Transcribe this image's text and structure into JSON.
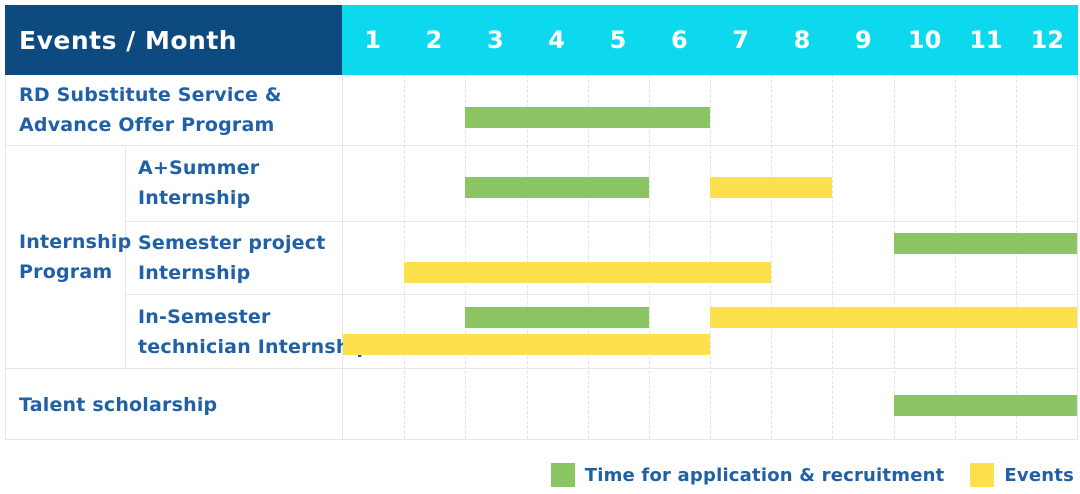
{
  "header": {
    "title": "Events / Month",
    "months": [
      "1",
      "2",
      "3",
      "4",
      "5",
      "6",
      "7",
      "8",
      "9",
      "10",
      "11",
      "12"
    ]
  },
  "rows": {
    "rd": {
      "label_lines": [
        "RD Substitute Service &",
        "Advance Offer Program"
      ]
    },
    "internship_group": {
      "label_lines": [
        "Internship",
        "Program"
      ]
    },
    "a_summer": {
      "label_lines": [
        "A+Summer",
        "Internship"
      ]
    },
    "semester": {
      "label_lines": [
        "Semester project",
        "Internship"
      ]
    },
    "in_semester": {
      "label_lines": [
        "In-Semester",
        "technician Internship"
      ]
    },
    "talent": {
      "label_lines": [
        "Talent scholarship"
      ]
    }
  },
  "legend": {
    "application": {
      "label": "Time for application & recruitment",
      "color": "#8bc563"
    },
    "events": {
      "label": "Events",
      "color": "#fde14c"
    }
  },
  "colors": {
    "header_bg": "#0d4a7f",
    "month_header_bg": "#0cd9ee",
    "label_text": "#2060a6",
    "bar_green": "#8bc563",
    "bar_yellow": "#fde14c",
    "grid_line": "#e4e7ea"
  },
  "chart_data": {
    "type": "bar",
    "subtype": "gantt-timeline",
    "title": "Events / Month",
    "xlabel": "Month",
    "x_ticks": [
      1,
      2,
      3,
      4,
      5,
      6,
      7,
      8,
      9,
      10,
      11,
      12
    ],
    "x_range_months": [
      1,
      12
    ],
    "grid": "dashed-vertical",
    "legend_position": "bottom-right",
    "series_legend": [
      "Time for application & recruitment",
      "Events"
    ],
    "row_order": [
      "rd",
      "a_summer",
      "semester",
      "in_semester",
      "talent"
    ],
    "bars": [
      {
        "row": "rd",
        "category": "Time for application & recruitment",
        "start_month": 3,
        "end_month": 6,
        "lane": "center"
      },
      {
        "row": "a_summer",
        "category": "Time for application & recruitment",
        "start_month": 3,
        "end_month": 5,
        "lane": "center"
      },
      {
        "row": "a_summer",
        "category": "Events",
        "start_month": 7,
        "end_month": 8,
        "lane": "center"
      },
      {
        "row": "semester",
        "category": "Time for application & recruitment",
        "start_month": 10,
        "end_month": 12,
        "lane": "upper"
      },
      {
        "row": "semester",
        "category": "Events",
        "start_month": 2,
        "end_month": 7,
        "lane": "lower"
      },
      {
        "row": "in_semester",
        "category": "Time for application & recruitment",
        "start_month": 3,
        "end_month": 5,
        "lane": "upper"
      },
      {
        "row": "in_semester",
        "category": "Events",
        "start_month": 7,
        "end_month": 12,
        "lane": "upper"
      },
      {
        "row": "in_semester",
        "category": "Events",
        "start_month": 1,
        "end_month": 6,
        "lane": "lower"
      },
      {
        "row": "talent",
        "category": "Time for application & recruitment",
        "start_month": 10,
        "end_month": 12,
        "lane": "center"
      }
    ]
  }
}
